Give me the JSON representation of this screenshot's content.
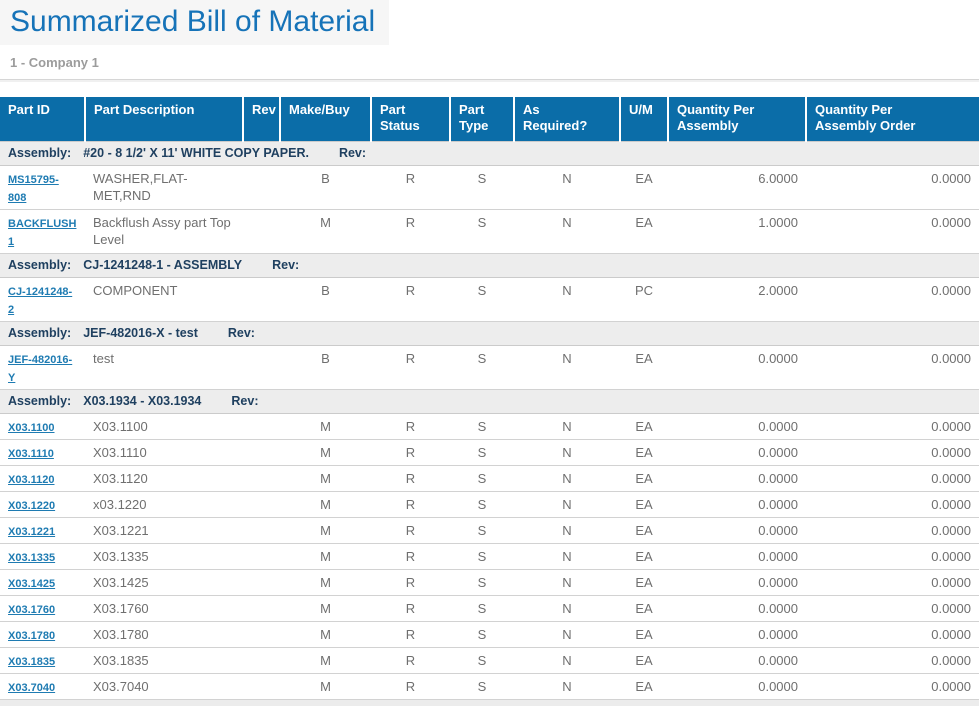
{
  "page": {
    "title": "Summarized Bill of Material",
    "subtitle": "1 - Company 1"
  },
  "colors": {
    "title_color": "#1673b8",
    "subtitle_color": "#9c9c9c",
    "header_bg": "#0b6da8",
    "assembly_bg": "#ededed",
    "assembly_text": "#1f4060",
    "link_color": "#1e7bb2",
    "text_color": "#6f6f6f"
  },
  "table": {
    "columns": [
      {
        "label": "Part ID"
      },
      {
        "label": "Part Description"
      },
      {
        "label": "Rev"
      },
      {
        "label": "Make/Buy"
      },
      {
        "label": "Part Status"
      },
      {
        "label": "Part Type"
      },
      {
        "label": "As Required?"
      },
      {
        "label": "U/M"
      },
      {
        "label": "Quantity Per Assembly"
      },
      {
        "label": "Quantity Per Assembly Order"
      }
    ],
    "groups": [
      {
        "assembly_label": "Assembly:",
        "assembly_name": "#20 - 8 1/2' X 11' WHITE COPY PAPER.",
        "rev_label": "Rev:",
        "rows": [
          {
            "part_id": "MS15795-808",
            "description": "WASHER,FLAT-MET,RND",
            "rev": "",
            "make_buy": "B",
            "part_status": "R",
            "part_type": "S",
            "as_required": "N",
            "uom": "EA",
            "qty_per_assembly": "6.0000",
            "qty_per_assembly_order": "0.0000"
          },
          {
            "part_id": "BACKFLUSH1",
            "description": "Backflush Assy part Top Level",
            "rev": "",
            "make_buy": "M",
            "part_status": "R",
            "part_type": "S",
            "as_required": "N",
            "uom": "EA",
            "qty_per_assembly": "1.0000",
            "qty_per_assembly_order": "0.0000"
          }
        ]
      },
      {
        "assembly_label": "Assembly:",
        "assembly_name": "CJ-1241248-1 - ASSEMBLY",
        "rev_label": "Rev:",
        "rows": [
          {
            "part_id": "CJ-1241248-2",
            "description": "COMPONENT",
            "rev": "",
            "make_buy": "B",
            "part_status": "R",
            "part_type": "S",
            "as_required": "N",
            "uom": "PC",
            "qty_per_assembly": "2.0000",
            "qty_per_assembly_order": "0.0000"
          }
        ]
      },
      {
        "assembly_label": "Assembly:",
        "assembly_name": "JEF-482016-X - test",
        "rev_label": "Rev:",
        "rows": [
          {
            "part_id": "JEF-482016-Y",
            "description": "test",
            "rev": "",
            "make_buy": "B",
            "part_status": "R",
            "part_type": "S",
            "as_required": "N",
            "uom": "EA",
            "qty_per_assembly": "0.0000",
            "qty_per_assembly_order": "0.0000"
          }
        ]
      },
      {
        "assembly_label": "Assembly:",
        "assembly_name": "X03.1934 - X03.1934",
        "rev_label": "Rev:",
        "rows": [
          {
            "part_id": "X03.1100",
            "description": "X03.1100",
            "rev": "",
            "make_buy": "M",
            "part_status": "R",
            "part_type": "S",
            "as_required": "N",
            "uom": "EA",
            "qty_per_assembly": "0.0000",
            "qty_per_assembly_order": "0.0000"
          },
          {
            "part_id": "X03.1110",
            "description": "X03.1110",
            "rev": "",
            "make_buy": "M",
            "part_status": "R",
            "part_type": "S",
            "as_required": "N",
            "uom": "EA",
            "qty_per_assembly": "0.0000",
            "qty_per_assembly_order": "0.0000"
          },
          {
            "part_id": "X03.1120",
            "description": "X03.1120",
            "rev": "",
            "make_buy": "M",
            "part_status": "R",
            "part_type": "S",
            "as_required": "N",
            "uom": "EA",
            "qty_per_assembly": "0.0000",
            "qty_per_assembly_order": "0.0000"
          },
          {
            "part_id": "X03.1220",
            "description": "x03.1220",
            "rev": "",
            "make_buy": "M",
            "part_status": "R",
            "part_type": "S",
            "as_required": "N",
            "uom": "EA",
            "qty_per_assembly": "0.0000",
            "qty_per_assembly_order": "0.0000"
          },
          {
            "part_id": "X03.1221",
            "description": "X03.1221",
            "rev": "",
            "make_buy": "M",
            "part_status": "R",
            "part_type": "S",
            "as_required": "N",
            "uom": "EA",
            "qty_per_assembly": "0.0000",
            "qty_per_assembly_order": "0.0000"
          },
          {
            "part_id": "X03.1335",
            "description": "X03.1335",
            "rev": "",
            "make_buy": "M",
            "part_status": "R",
            "part_type": "S",
            "as_required": "N",
            "uom": "EA",
            "qty_per_assembly": "0.0000",
            "qty_per_assembly_order": "0.0000"
          },
          {
            "part_id": "X03.1425",
            "description": "X03.1425",
            "rev": "",
            "make_buy": "M",
            "part_status": "R",
            "part_type": "S",
            "as_required": "N",
            "uom": "EA",
            "qty_per_assembly": "0.0000",
            "qty_per_assembly_order": "0.0000"
          },
          {
            "part_id": "X03.1760",
            "description": "X03.1760",
            "rev": "",
            "make_buy": "M",
            "part_status": "R",
            "part_type": "S",
            "as_required": "N",
            "uom": "EA",
            "qty_per_assembly": "0.0000",
            "qty_per_assembly_order": "0.0000"
          },
          {
            "part_id": "X03.1780",
            "description": "X03.1780",
            "rev": "",
            "make_buy": "M",
            "part_status": "R",
            "part_type": "S",
            "as_required": "N",
            "uom": "EA",
            "qty_per_assembly": "0.0000",
            "qty_per_assembly_order": "0.0000"
          },
          {
            "part_id": "X03.1835",
            "description": "X03.1835",
            "rev": "",
            "make_buy": "M",
            "part_status": "R",
            "part_type": "S",
            "as_required": "N",
            "uom": "EA",
            "qty_per_assembly": "0.0000",
            "qty_per_assembly_order": "0.0000"
          },
          {
            "part_id": "X03.7040",
            "description": "X03.7040",
            "rev": "",
            "make_buy": "M",
            "part_status": "R",
            "part_type": "S",
            "as_required": "N",
            "uom": "EA",
            "qty_per_assembly": "0.0000",
            "qty_per_assembly_order": "0.0000"
          }
        ]
      }
    ]
  }
}
